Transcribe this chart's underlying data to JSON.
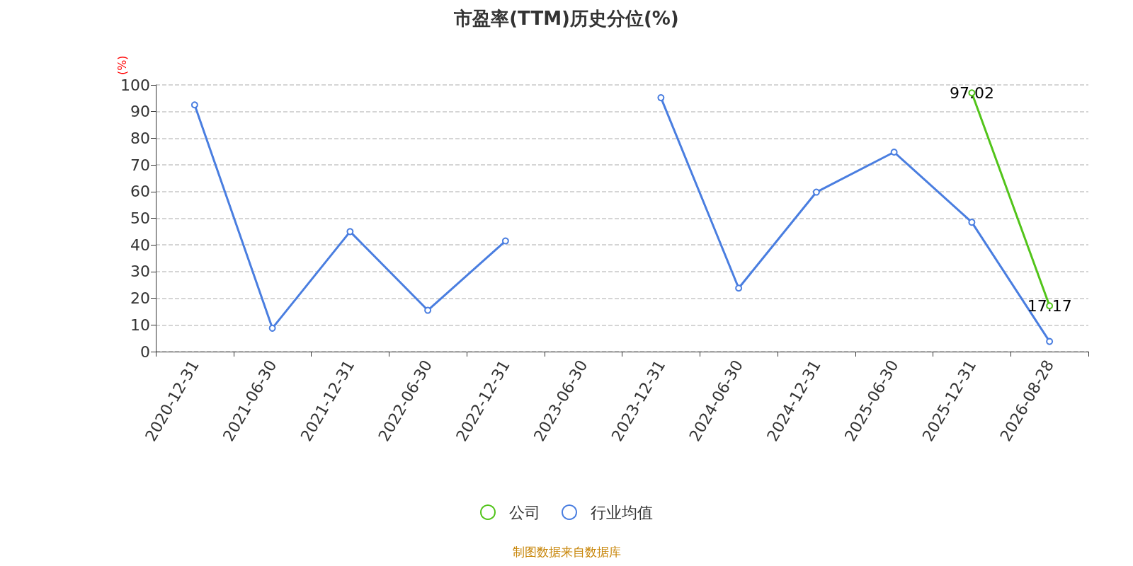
{
  "chart_data": {
    "type": "line",
    "title": "市盈率(TTM)历史分位(%)",
    "ylabel": "(%)",
    "categories": [
      "2020-12-31",
      "2021-06-30",
      "2021-12-31",
      "2022-06-30",
      "2022-12-31",
      "2023-06-30",
      "2023-12-31",
      "2024-06-30",
      "2024-12-31",
      "2025-06-30",
      "2025-12-31",
      "2026-08-28"
    ],
    "series": [
      {
        "name": "公司",
        "color": "#52c41a",
        "values": [
          null,
          null,
          null,
          null,
          null,
          null,
          null,
          null,
          null,
          null,
          97.02,
          17.17
        ],
        "value_labels": [
          null,
          null,
          null,
          null,
          null,
          null,
          null,
          null,
          null,
          null,
          "97.02",
          "17.17"
        ]
      },
      {
        "name": "行业均值",
        "color": "#4a7ee0",
        "values": [
          92.5,
          8.8,
          45,
          15.5,
          41.5,
          null,
          95.2,
          23.8,
          59.8,
          74.8,
          48.5,
          3.8
        ]
      }
    ],
    "ylim": [
      0,
      100
    ],
    "yticks": [
      0,
      10,
      20,
      30,
      40,
      50,
      60,
      70,
      80,
      90,
      100
    ],
    "grid": "y",
    "legend": "bottom",
    "marker": "circle",
    "line_style": "solid",
    "annotations": [
      "制图数据来自数据库"
    ]
  }
}
